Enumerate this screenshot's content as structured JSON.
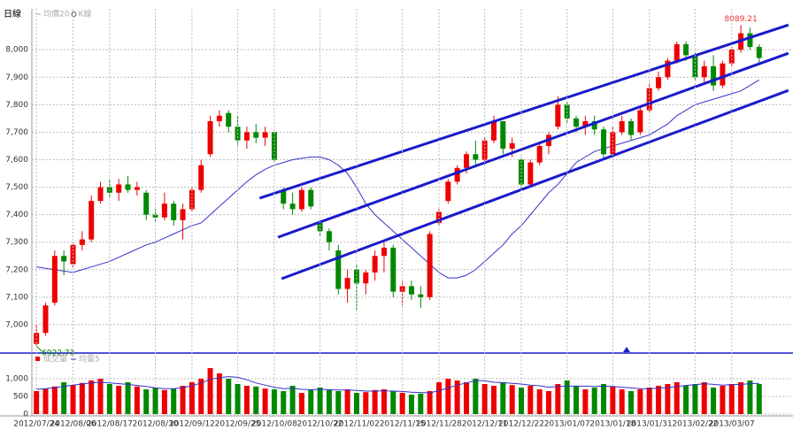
{
  "chart_data": [
    {
      "type": "candlestick",
      "title": "日線",
      "candles": {
        "name": "K線",
        "up_color": "#ee0000",
        "down_color": "#008800",
        "values": [
          [
            6930,
            7000,
            6922.73,
            6970
          ],
          [
            6970,
            7080,
            6960,
            7070
          ],
          [
            7080,
            7270,
            7070,
            7250
          ],
          [
            7250,
            7270,
            7180,
            7230
          ],
          [
            7220,
            7300,
            7210,
            7290
          ],
          [
            7290,
            7340,
            7270,
            7310
          ],
          [
            7310,
            7470,
            7300,
            7450
          ],
          [
            7450,
            7520,
            7440,
            7500
          ],
          [
            7500,
            7530,
            7460,
            7480
          ],
          [
            7480,
            7530,
            7450,
            7510
          ],
          [
            7510,
            7540,
            7480,
            7490
          ],
          [
            7490,
            7520,
            7470,
            7500
          ],
          [
            7480,
            7490,
            7380,
            7400
          ],
          [
            7400,
            7420,
            7370,
            7390
          ],
          [
            7390,
            7480,
            7380,
            7440
          ],
          [
            7440,
            7450,
            7360,
            7380
          ],
          [
            7380,
            7440,
            7310,
            7420
          ],
          [
            7420,
            7500,
            7410,
            7490
          ],
          [
            7490,
            7600,
            7480,
            7580
          ],
          [
            7620,
            7760,
            7610,
            7740
          ],
          [
            7740,
            7780,
            7720,
            7760
          ],
          [
            7770,
            7780,
            7700,
            7720
          ],
          [
            7720,
            7760,
            7650,
            7670
          ],
          [
            7670,
            7720,
            7640,
            7700
          ],
          [
            7700,
            7730,
            7660,
            7680
          ],
          [
            7680,
            7720,
            7650,
            7700
          ],
          [
            7700,
            7700,
            7590,
            7600
          ],
          [
            7490,
            7500,
            7420,
            7440
          ],
          [
            7440,
            7480,
            7400,
            7420
          ],
          [
            7420,
            7500,
            7410,
            7490
          ],
          [
            7490,
            7500,
            7420,
            7430
          ],
          [
            7370,
            7380,
            7320,
            7340
          ],
          [
            7340,
            7350,
            7270,
            7300
          ],
          [
            7270,
            7290,
            7110,
            7130
          ],
          [
            7130,
            7200,
            7080,
            7170
          ],
          [
            7200,
            7220,
            7050,
            7150
          ],
          [
            7150,
            7200,
            7110,
            7190
          ],
          [
            7190,
            7270,
            7160,
            7250
          ],
          [
            7250,
            7300,
            7190,
            7280
          ],
          [
            7280,
            7290,
            7100,
            7120
          ],
          [
            7120,
            7160,
            7070,
            7140
          ],
          [
            7140,
            7160,
            7090,
            7110
          ],
          [
            7110,
            7140,
            7060,
            7100
          ],
          [
            7100,
            7340,
            7090,
            7330
          ],
          [
            7370,
            7420,
            7360,
            7410
          ],
          [
            7450,
            7530,
            7440,
            7520
          ],
          [
            7520,
            7580,
            7510,
            7570
          ],
          [
            7570,
            7630,
            7550,
            7620
          ],
          [
            7620,
            7670,
            7580,
            7600
          ],
          [
            7600,
            7680,
            7590,
            7670
          ],
          [
            7670,
            7760,
            7660,
            7740
          ],
          [
            7740,
            7740,
            7620,
            7640
          ],
          [
            7640,
            7680,
            7610,
            7660
          ],
          [
            7600,
            7610,
            7490,
            7510
          ],
          [
            7510,
            7600,
            7500,
            7590
          ],
          [
            7590,
            7660,
            7580,
            7650
          ],
          [
            7650,
            7700,
            7620,
            7690
          ],
          [
            7720,
            7830,
            7710,
            7800
          ],
          [
            7800,
            7810,
            7730,
            7750
          ],
          [
            7750,
            7760,
            7700,
            7720
          ],
          [
            7720,
            7760,
            7690,
            7740
          ],
          [
            7740,
            7760,
            7690,
            7710
          ],
          [
            7710,
            7720,
            7600,
            7620
          ],
          [
            7620,
            7720,
            7610,
            7700
          ],
          [
            7700,
            7760,
            7690,
            7740
          ],
          [
            7740,
            7750,
            7670,
            7690
          ],
          [
            7700,
            7790,
            7690,
            7780
          ],
          [
            7780,
            7880,
            7770,
            7860
          ],
          [
            7860,
            7920,
            7850,
            7900
          ],
          [
            7900,
            7970,
            7890,
            7960
          ],
          [
            7960,
            8030,
            7950,
            8020
          ],
          [
            8020,
            8030,
            7960,
            7980
          ],
          [
            7980,
            7990,
            7890,
            7900
          ],
          [
            7900,
            7960,
            7880,
            7940
          ],
          [
            7940,
            7980,
            7850,
            7870
          ],
          [
            7870,
            7960,
            7860,
            7950
          ],
          [
            7950,
            8010,
            7940,
            8000
          ],
          [
            8000,
            8089.21,
            7990,
            8060
          ],
          [
            8060,
            8080,
            8000,
            8010
          ],
          [
            8010,
            8020,
            7950,
            7970
          ]
        ]
      },
      "series": [
        {
          "name": "均價20",
          "color": "#3333cc",
          "values": [
            7210,
            7205,
            7200,
            7195,
            7190,
            7200,
            7210,
            7220,
            7230,
            7245,
            7260,
            7275,
            7290,
            7300,
            7315,
            7330,
            7345,
            7360,
            7370,
            7400,
            7430,
            7460,
            7490,
            7520,
            7545,
            7565,
            7580,
            7590,
            7600,
            7605,
            7610,
            7610,
            7600,
            7580,
            7550,
            7500,
            7440,
            7400,
            7370,
            7340,
            7310,
            7280,
            7250,
            7220,
            7190,
            7170,
            7170,
            7180,
            7200,
            7230,
            7260,
            7290,
            7330,
            7360,
            7400,
            7440,
            7480,
            7510,
            7550,
            7590,
            7610,
            7630,
            7640,
            7650,
            7660,
            7670,
            7680,
            7690,
            7710,
            7730,
            7760,
            7780,
            7800,
            7810,
            7820,
            7830,
            7840,
            7850,
            7870,
            7890
          ]
        }
      ],
      "trendlines": {
        "color": "#1a1acc",
        "lines": [
          {
            "x": [
              24.4,
              82.2
            ],
            "y": [
              7460,
              8090
            ]
          },
          {
            "x": [
              26.4,
              82.2
            ],
            "y": [
              7318,
              7987
            ]
          },
          {
            "x": [
              26.8,
              82.2
            ],
            "y": [
              7167,
              7852
            ]
          }
        ]
      },
      "annotations": [
        {
          "label": "8089.21",
          "value": 8089.21,
          "color": "#ee3333"
        },
        {
          "label": "6922.73",
          "value": 6922.73,
          "color": "#008800"
        }
      ],
      "ylim": [
        6900,
        8110
      ],
      "yticks": [
        {
          "value": 7000,
          "label": "7,000"
        },
        {
          "value": 7100,
          "label": "7,100"
        },
        {
          "value": 7200,
          "label": "7,200"
        },
        {
          "value": 7300,
          "label": "7,300"
        },
        {
          "value": 7400,
          "label": "7,400"
        },
        {
          "value": 7500,
          "label": "7,500"
        },
        {
          "value": 7600,
          "label": "7,600"
        },
        {
          "value": 7700,
          "label": "7,700"
        },
        {
          "value": 7800,
          "label": "7,800"
        },
        {
          "value": 7900,
          "label": "7,900"
        },
        {
          "value": 8000,
          "label": "8,000"
        }
      ],
      "grid": true
    },
    {
      "type": "volume",
      "categories": [
        "2012/07/24",
        null,
        null,
        null,
        "2012/08/06",
        null,
        null,
        null,
        "2012/08/17",
        null,
        null,
        null,
        null,
        "2012/08/30",
        null,
        null,
        null,
        "2012/09/12",
        null,
        null,
        null,
        null,
        "2012/09/25",
        null,
        null,
        null,
        "2012/10/08",
        null,
        null,
        null,
        null,
        "2012/10/22",
        null,
        null,
        null,
        "2012/11/02",
        null,
        null,
        null,
        null,
        "2012/11/15",
        null,
        null,
        null,
        "2012/11/28",
        null,
        null,
        null,
        null,
        "2012/12/11",
        null,
        null,
        null,
        "2012/12/22",
        null,
        null,
        null,
        null,
        "2013/01/07",
        null,
        null,
        null,
        null,
        "2013/01/18",
        null,
        null,
        null,
        "2013/01/31",
        null,
        null,
        null,
        null,
        "2013/02/22",
        null,
        null,
        null,
        "2013/03/07",
        null,
        null,
        null
      ],
      "series": [
        {
          "name": "成交量",
          "color": "#ee0000",
          "values": [
            650,
            720,
            780,
            900,
            820,
            880,
            950,
            1000,
            850,
            800,
            900,
            780,
            700,
            750,
            680,
            720,
            800,
            900,
            1000,
            1300,
            1150,
            1000,
            850,
            800,
            780,
            720,
            700,
            650,
            800,
            600,
            700,
            750,
            680,
            650,
            700,
            600,
            620,
            680,
            700,
            650,
            600,
            550,
            580,
            650,
            900,
            1000,
            950,
            900,
            1000,
            850,
            800,
            900,
            820,
            750,
            800,
            700,
            650,
            850,
            950,
            800,
            700,
            750,
            850,
            780,
            700,
            650,
            700,
            750,
            800,
            850,
            900,
            800,
            850,
            900,
            750,
            800,
            850,
            900,
            950,
            850
          ]
        },
        {
          "name": "均量5",
          "color": "#3333cc",
          "values": [
            700,
            720,
            750,
            780,
            820,
            850,
            880,
            900,
            880,
            860,
            840,
            810,
            780,
            740,
            720,
            720,
            750,
            800,
            880,
            980,
            1030,
            1060,
            1040,
            970,
            880,
            820,
            760,
            720,
            730,
            700,
            690,
            700,
            690,
            680,
            680,
            670,
            650,
            650,
            660,
            650,
            640,
            620,
            610,
            600,
            660,
            740,
            820,
            880,
            950,
            940,
            900,
            890,
            870,
            850,
            820,
            800,
            760,
            780,
            790,
            790,
            790,
            780,
            790,
            780,
            760,
            740,
            720,
            720,
            730,
            750,
            780,
            810,
            830,
            860,
            840,
            820,
            830,
            840,
            860,
            870
          ]
        }
      ],
      "ylim": [
        0,
        1650
      ],
      "yticks": [
        0,
        500,
        {
          "value": 1000,
          "label": "1,000"
        }
      ],
      "grid": true
    }
  ]
}
